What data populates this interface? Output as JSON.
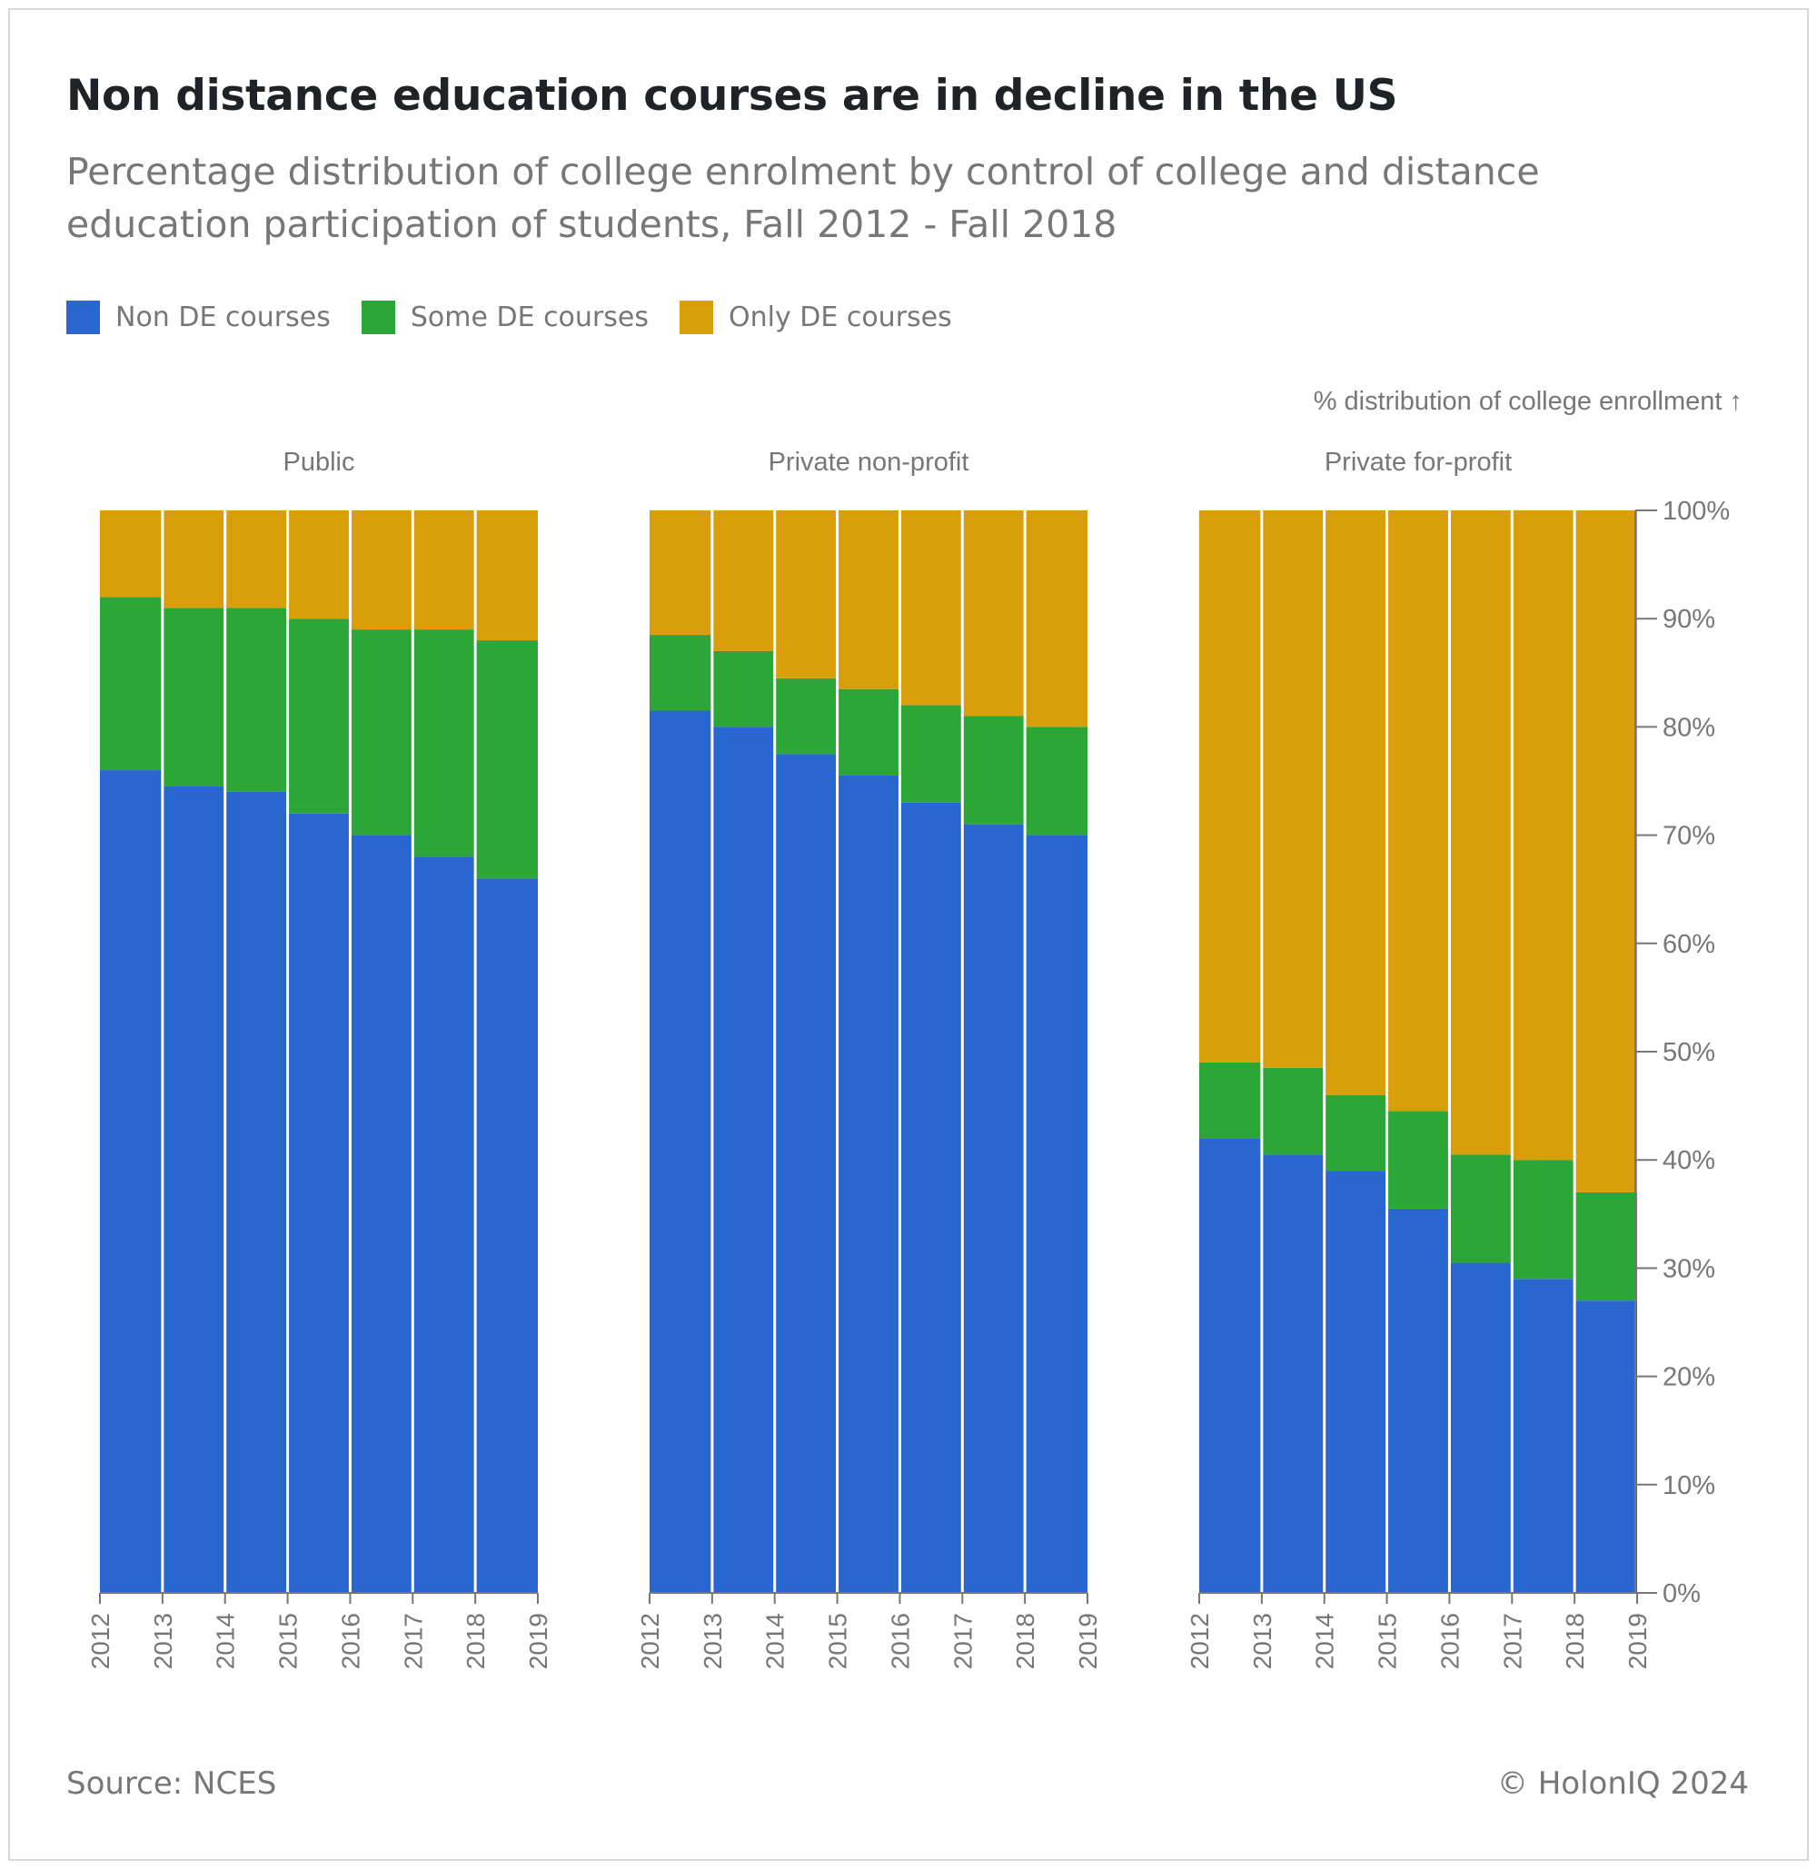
{
  "header": {
    "title": "Non distance education courses are in decline in the US",
    "subtitle": "Percentage distribution of college enrolment by control of college and distance education participation of students, Fall 2012 - Fall 2018"
  },
  "footer": {
    "source": "Source: NCES",
    "copyright": "© HolonIQ 2024"
  },
  "colors": {
    "non_de": "#2a66cf",
    "some_de": "#2ca636",
    "only_de": "#d99f0b",
    "axis": "#777777"
  },
  "chart_data": {
    "type": "bar",
    "stacked": true,
    "legend_position": "top-left",
    "ylabel": "% distribution of college enrollment ↑",
    "ylim": [
      0,
      100
    ],
    "yticks": [
      "0%",
      "10%",
      "20%",
      "30%",
      "40%",
      "50%",
      "60%",
      "70%",
      "80%",
      "90%",
      "100%"
    ],
    "xticks": [
      "2012",
      "2013",
      "2014",
      "2015",
      "2016",
      "2017",
      "2018",
      "2019"
    ],
    "legend": [
      "Non DE courses",
      "Some DE courses",
      "Only DE courses"
    ],
    "panels": [
      {
        "name": "Public",
        "categories": [
          "2012",
          "2013",
          "2014",
          "2015",
          "2016",
          "2017",
          "2018"
        ],
        "series": [
          {
            "name": "Non DE courses",
            "values": [
              76,
              74.5,
              74,
              72,
              70,
              68,
              66
            ]
          },
          {
            "name": "Some DE courses",
            "values": [
              16,
              16.5,
              17,
              18,
              19,
              21,
              22
            ]
          },
          {
            "name": "Only DE courses",
            "values": [
              8,
              9,
              9,
              10,
              11,
              11,
              12
            ]
          }
        ]
      },
      {
        "name": "Private non-profit",
        "categories": [
          "2012",
          "2013",
          "2014",
          "2015",
          "2016",
          "2017",
          "2018"
        ],
        "series": [
          {
            "name": "Non DE courses",
            "values": [
              81.5,
              80,
              77.5,
              75.5,
              73,
              71,
              70
            ]
          },
          {
            "name": "Some DE courses",
            "values": [
              7,
              7,
              7,
              8,
              9,
              10,
              10
            ]
          },
          {
            "name": "Only DE courses",
            "values": [
              11.5,
              13,
              15.5,
              16.5,
              18,
              19,
              20
            ]
          }
        ]
      },
      {
        "name": "Private for-profit",
        "categories": [
          "2012",
          "2013",
          "2014",
          "2015",
          "2016",
          "2017",
          "2018"
        ],
        "series": [
          {
            "name": "Non DE courses",
            "values": [
              42,
              40.5,
              39,
              35.5,
              30.5,
              29,
              27
            ]
          },
          {
            "name": "Some DE courses",
            "values": [
              7,
              8,
              7,
              9,
              10,
              11,
              10
            ]
          },
          {
            "name": "Only DE courses",
            "values": [
              51,
              51.5,
              54,
              55.5,
              59.5,
              60,
              63
            ]
          }
        ]
      }
    ]
  }
}
